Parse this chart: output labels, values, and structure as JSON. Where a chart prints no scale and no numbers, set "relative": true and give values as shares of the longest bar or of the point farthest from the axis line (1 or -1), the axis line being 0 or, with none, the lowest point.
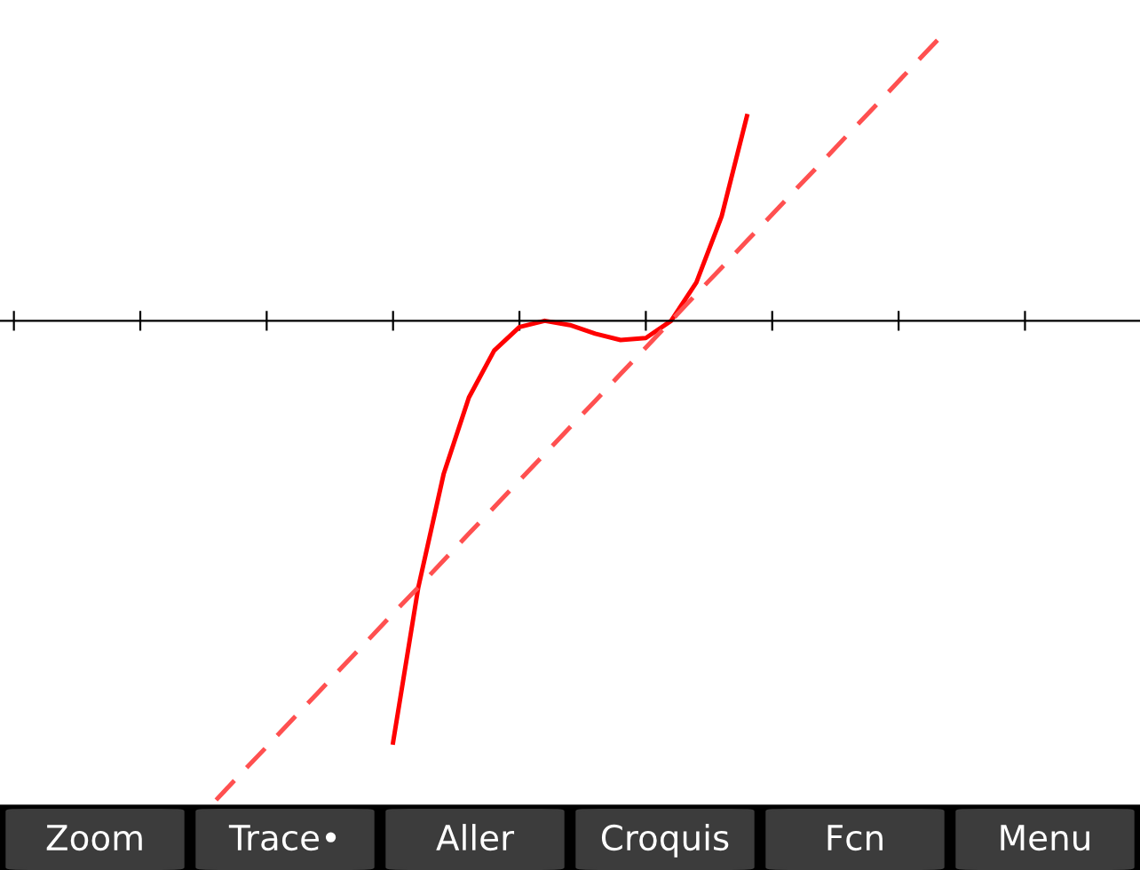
{
  "chart_data": {
    "type": "line",
    "relative": true,
    "legend": false,
    "grid": false,
    "marker": "none",
    "categories": [
      null,
      null,
      null,
      null,
      null,
      null,
      null,
      null,
      null,
      null,
      null,
      null,
      null,
      null,
      null,
      null,
      null,
      null,
      null,
      null,
      null,
      null,
      null,
      null,
      null,
      null,
      null,
      null,
      null,
      null,
      null,
      null,
      null,
      null,
      null,
      null,
      null,
      null,
      null,
      null,
      null,
      null,
      null,
      null,
      null
    ],
    "series": [
      {
        "color": "#ff0000",
        "line_style": "solid",
        "values": [
          null,
          null,
          null,
          null,
          null,
          null,
          null,
          null,
          null,
          null,
          null,
          null,
          null,
          null,
          null,
          -0.88,
          -0.556,
          -0.32,
          -0.16,
          -0.062,
          -0.013,
          0,
          -0.009,
          -0.027,
          -0.04,
          -0.036,
          0,
          0.08,
          0.218,
          0.427,
          null,
          null,
          null,
          null,
          null,
          null,
          null,
          null,
          null,
          null,
          null,
          null,
          null,
          null,
          null
        ]
      },
      {
        "color": "#ff5050",
        "line_style": "dashed",
        "values": [
          null,
          null,
          null,
          null,
          null,
          null,
          null,
          null,
          -1,
          -0.944,
          -0.889,
          -0.833,
          -0.778,
          -0.722,
          -0.667,
          -0.611,
          -0.556,
          -0.5,
          -0.444,
          -0.389,
          -0.333,
          -0.278,
          -0.222,
          -0.167,
          -0.111,
          -0.056,
          0,
          0.056,
          0.111,
          0.167,
          0.222,
          0.278,
          0.333,
          0.389,
          0.444,
          0.5,
          0.556,
          0.611,
          null,
          null,
          null,
          null,
          null,
          null,
          null
        ]
      }
    ],
    "annotations": [
      "Zoom",
      "Trace•",
      "Aller",
      "Croquis",
      "Fcn",
      "Menu"
    ]
  }
}
